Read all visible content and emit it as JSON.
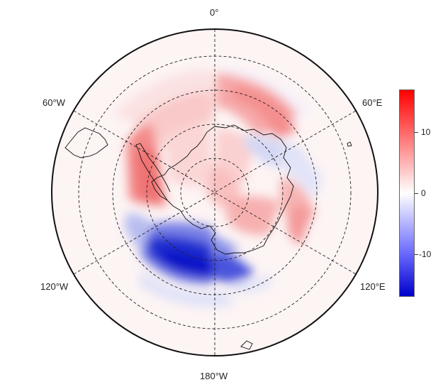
{
  "map": {
    "projection": "south-polar-stereographic",
    "longitude_labels": {
      "top": "0°",
      "upper_left": "60°W",
      "upper_right": "60°E",
      "lower_left": "120°W",
      "lower_right": "120°E",
      "bottom": "180°W"
    },
    "graticule": "dashed",
    "colormap": [
      "#0000cc",
      "#ffffff",
      "#ff0000"
    ]
  },
  "colorbar": {
    "ticks": [
      "10",
      "0",
      "-10"
    ],
    "tick_values": [
      10,
      0,
      -10
    ],
    "range": [
      -17,
      17
    ]
  }
}
